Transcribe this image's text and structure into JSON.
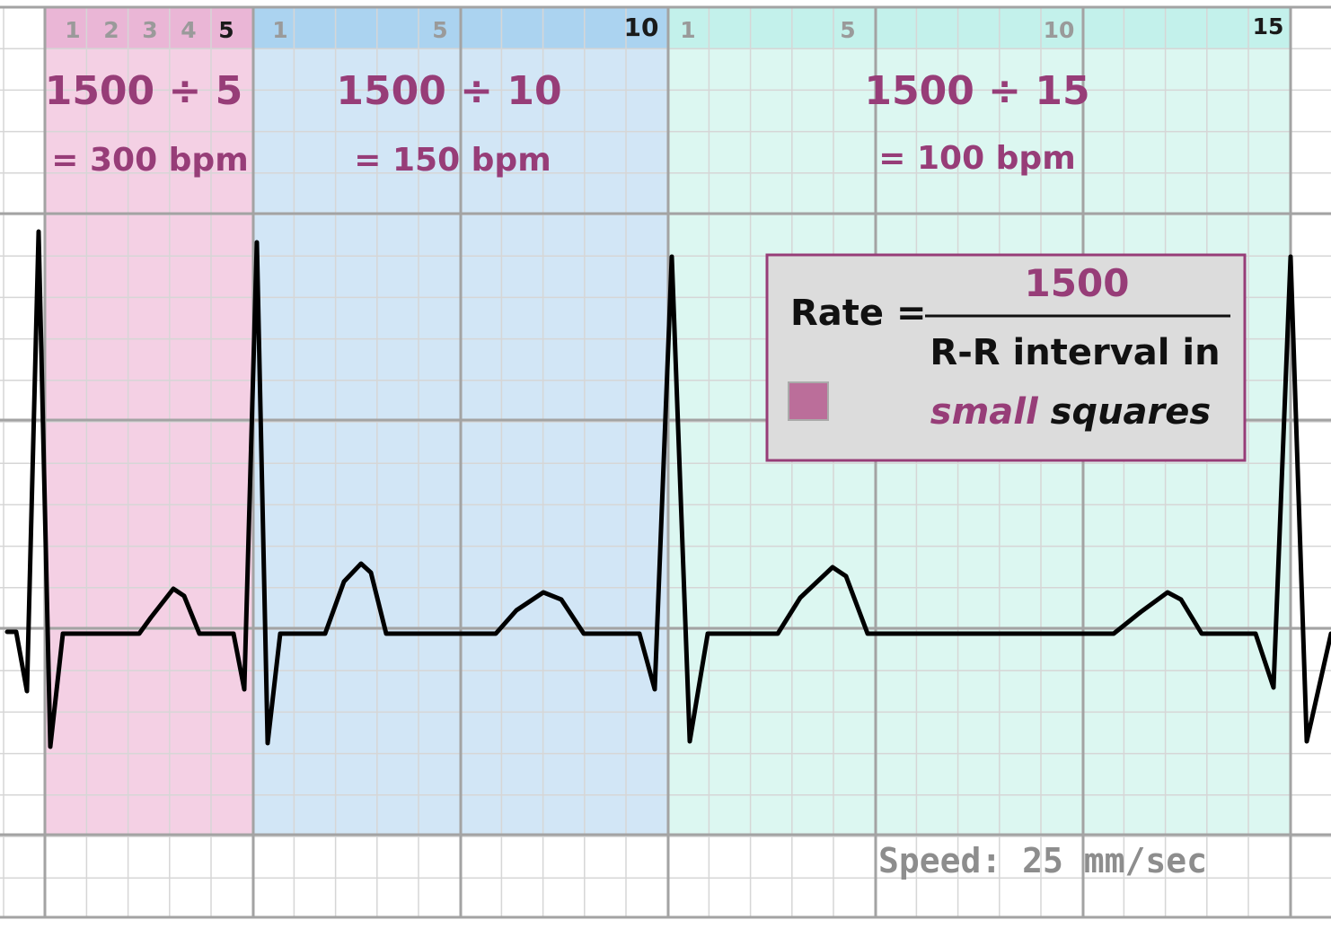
{
  "colors": {
    "pink_zone": "#f4d0e4",
    "pink_header": "#eab6d6",
    "blue_zone": "#d2e6f6",
    "blue_header": "#abd3f0",
    "teal_zone": "#dcf7f1",
    "teal_header": "#c3f1eb",
    "grid_minor": "#d6d6d6",
    "grid_major": "#a3a3a3",
    "accent": "#973d78",
    "trace": "#000000",
    "box_bg": "#dcdcdc",
    "box_border": "#973d78",
    "square_swatch": "#bb6e9a",
    "speed_text": "#8d8d8d"
  },
  "zones": [
    {
      "id": "pink",
      "header_numbers": [
        "1",
        "2",
        "3",
        "4",
        "5"
      ],
      "formula": "1500 ÷ 5",
      "result": "= 300 bpm"
    },
    {
      "id": "blue",
      "header_numbers": [
        "1",
        "5",
        "10"
      ],
      "formula": "1500 ÷ 10",
      "result": "= 150 bpm"
    },
    {
      "id": "teal",
      "header_numbers": [
        "1",
        "5",
        "10",
        "15"
      ],
      "formula": "1500 ÷ 15",
      "result": "= 100 bpm"
    }
  ],
  "rate_box": {
    "label": "Rate =",
    "numerator": "1500",
    "denominator_line1": "R-R interval in",
    "denominator_small": "small",
    "denominator_squares": " squares",
    "swatch_icon": "small-square-icon"
  },
  "speed": "Speed: 25 mm/sec"
}
